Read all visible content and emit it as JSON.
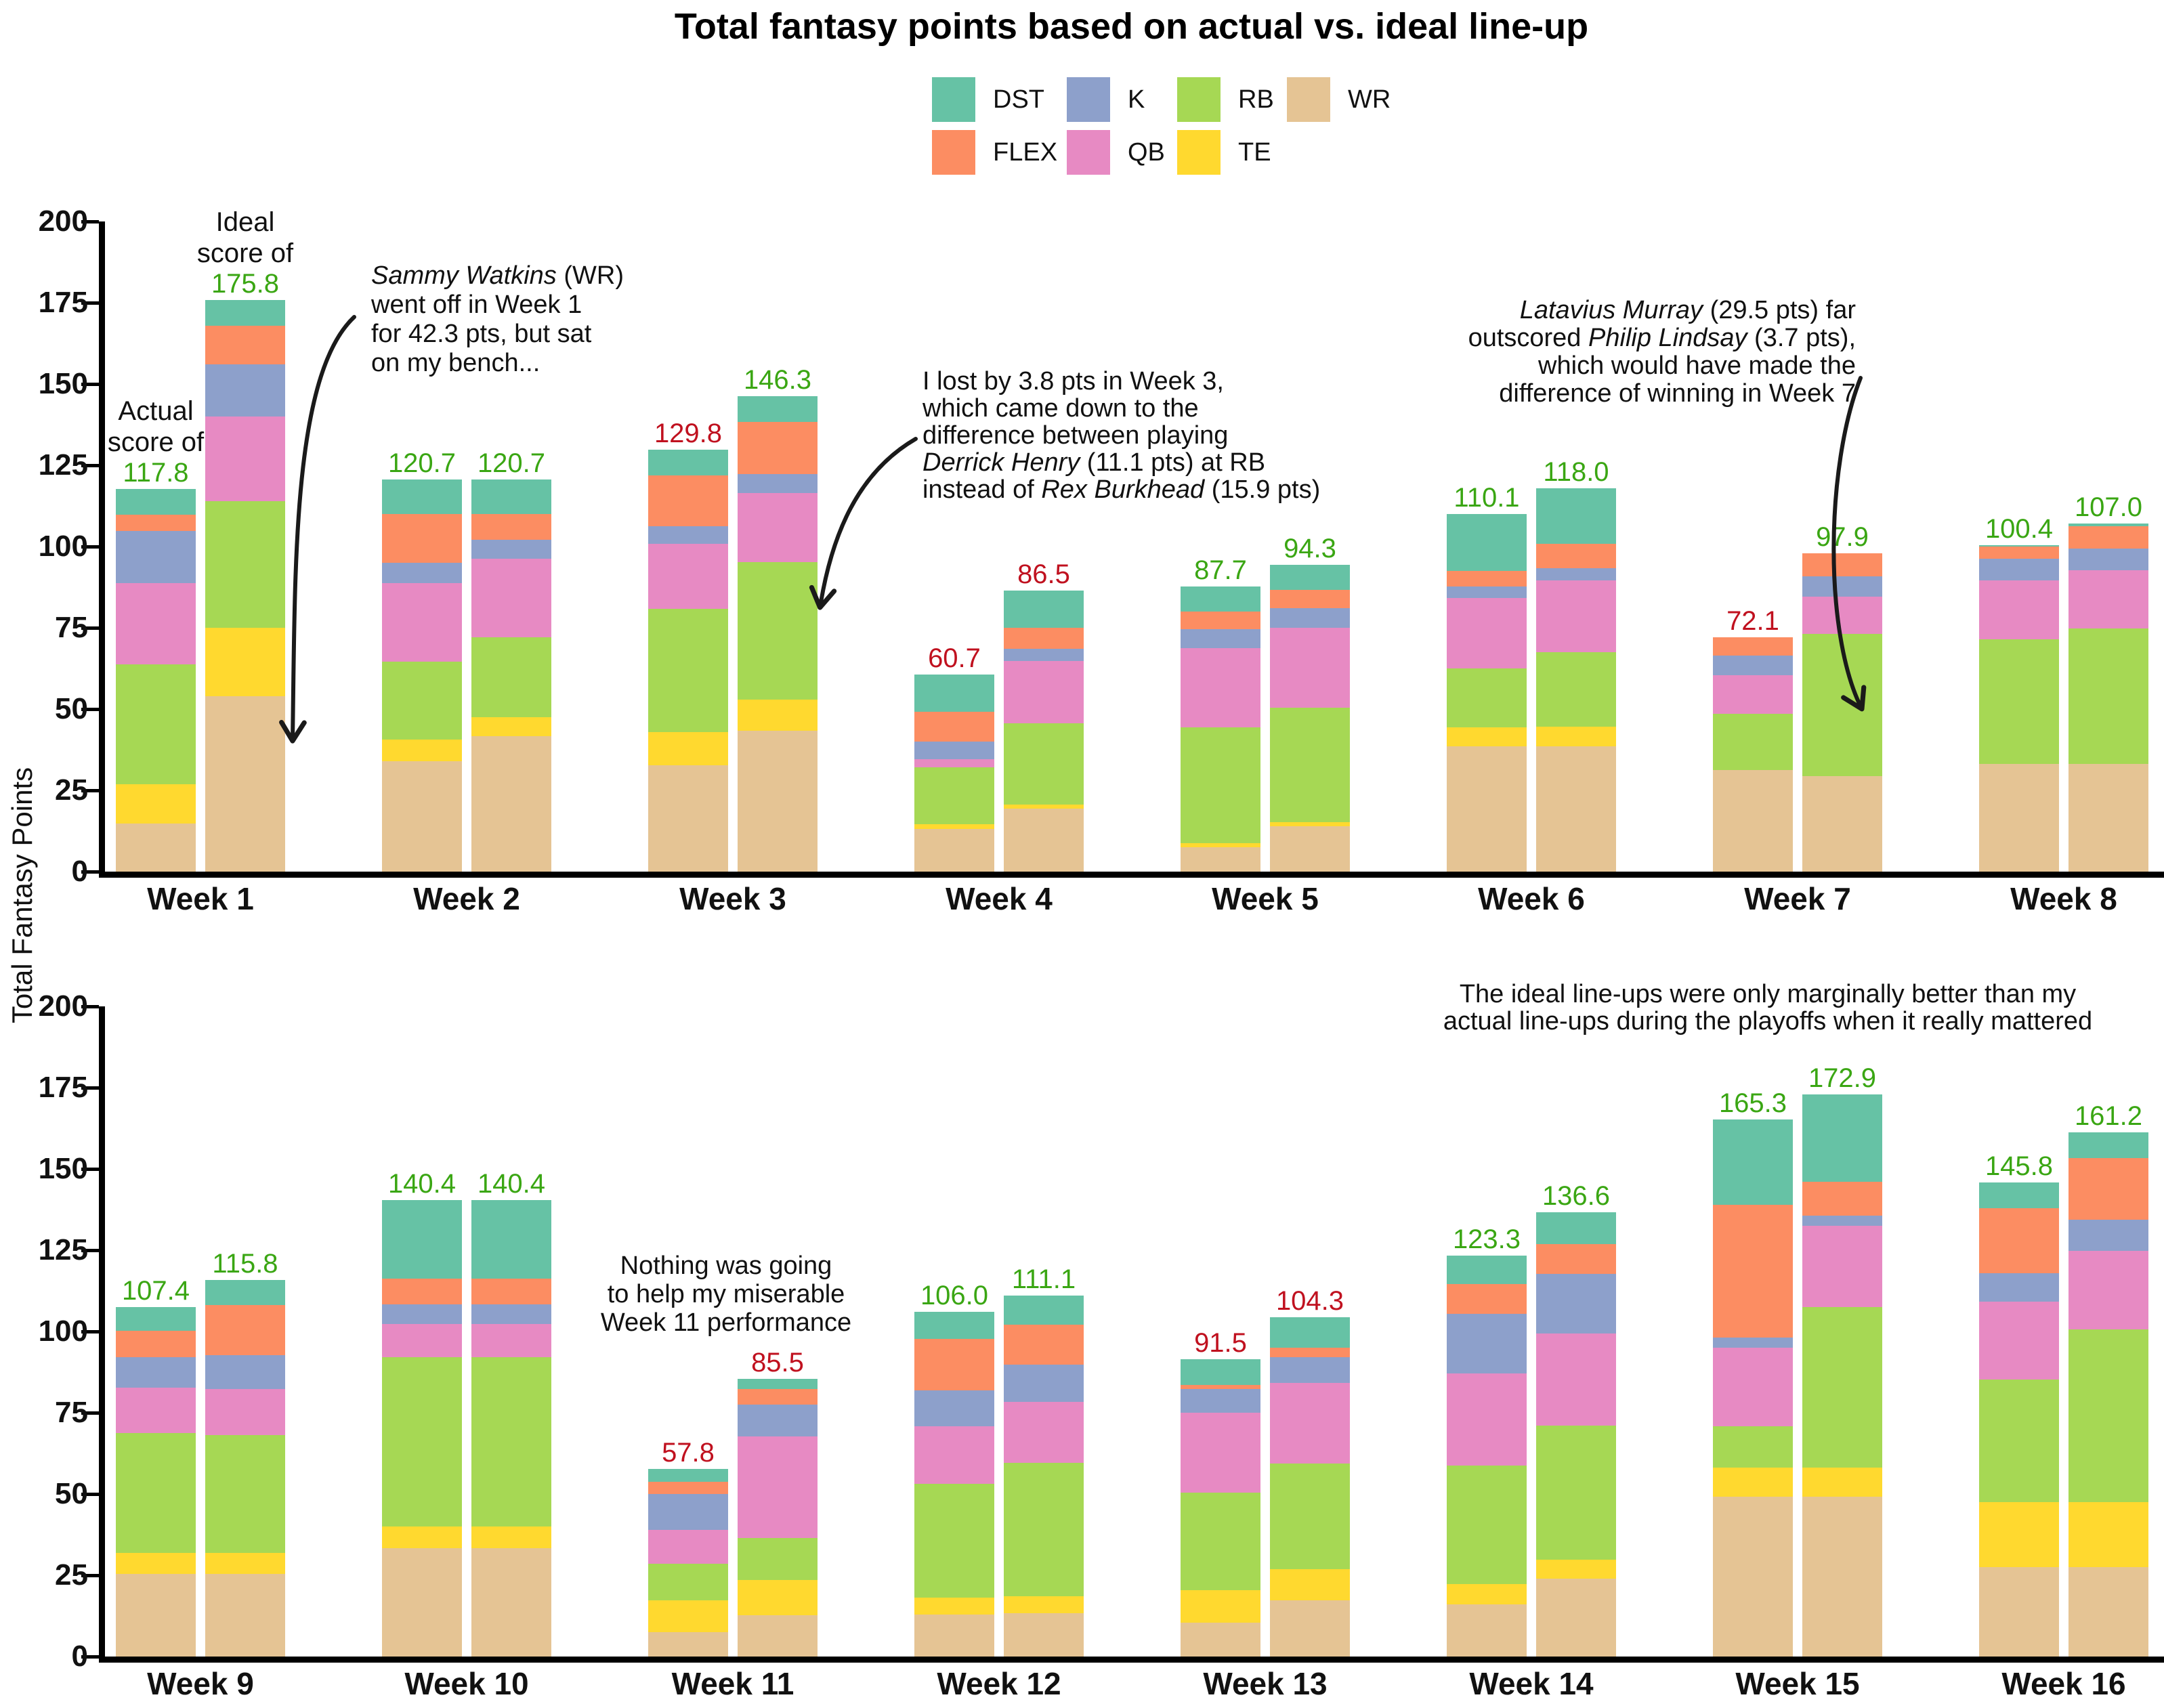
{
  "title": "Total fantasy points based on actual vs. ideal line-up",
  "y_axis_label": "Total Fantasy Points",
  "colors": {
    "win_label": "#3aa613",
    "loss_label": "#c0111f",
    "axis": "#000000",
    "text": "#111111"
  },
  "legend": [
    {
      "label": "DST",
      "color": "#66c2a5"
    },
    {
      "label": "K",
      "color": "#8da0cb"
    },
    {
      "label": "RB",
      "color": "#a6d854"
    },
    {
      "label": "WR",
      "color": "#e5c494"
    },
    {
      "label": "FLEX",
      "color": "#fc8d62"
    },
    {
      "label": "QB",
      "color": "#e78ac3"
    },
    {
      "label": "TE",
      "color": "#ffd92f"
    }
  ],
  "chart_data": {
    "type": "bar",
    "stacked": true,
    "bars_per_group": [
      "actual",
      "ideal"
    ],
    "stack_order_bottom_to_top": [
      "WR",
      "TE",
      "RB",
      "QB",
      "K",
      "FLEX",
      "DST"
    ],
    "category_colors": {
      "DST": "#66c2a5",
      "FLEX": "#fc8d62",
      "K": "#8da0cb",
      "QB": "#e78ac3",
      "RB": "#a6d854",
      "TE": "#ffd92f",
      "WR": "#e5c494"
    },
    "ylabel": "Total Fantasy Points",
    "ylim": [
      0,
      200
    ],
    "yticks": [
      0,
      25,
      50,
      75,
      100,
      125,
      150,
      175,
      200
    ],
    "grid": false,
    "legend_position": "top-center",
    "panels": [
      {
        "weeks": [
          {
            "label": "Week 1",
            "actual": {
              "total": 117.8,
              "result": "win",
              "segments": {
                "WR": 14.8,
                "TE": 12,
                "RB": 37,
                "QB": 25,
                "K": 16,
                "FLEX": 5,
                "DST": 8
              }
            },
            "ideal": {
              "total": 175.8,
              "result": "win",
              "segments": {
                "WR": 54,
                "TE": 21,
                "RB": 39,
                "QB": 26,
                "K": 16,
                "FLEX": 12,
                "DST": 7.8
              }
            }
          },
          {
            "label": "Week 2",
            "actual": {
              "total": 120.7,
              "result": "win",
              "segments": {
                "WR": 34,
                "TE": 6.6,
                "RB": 24,
                "QB": 24.2,
                "K": 6.3,
                "FLEX": 15,
                "DST": 10.6
              }
            },
            "ideal": {
              "total": 120.7,
              "result": "win",
              "segments": {
                "WR": 41.6,
                "TE": 5.9,
                "RB": 24.5,
                "QB": 24.2,
                "K": 5.9,
                "FLEX": 8,
                "DST": 10.6
              }
            }
          },
          {
            "label": "Week 3",
            "actual": {
              "total": 129.8,
              "result": "loss",
              "segments": {
                "WR": 32.8,
                "TE": 10.2,
                "RB": 37.9,
                "QB": 20,
                "K": 5.3,
                "FLEX": 15.7,
                "DST": 7.9
              }
            },
            "ideal": {
              "total": 146.3,
              "result": "win",
              "segments": {
                "WR": 43.3,
                "TE": 9.6,
                "RB": 42.3,
                "QB": 21.2,
                "K": 5.9,
                "FLEX": 16,
                "DST": 8
              }
            }
          },
          {
            "label": "Week 4",
            "actual": {
              "total": 60.7,
              "result": "loss",
              "segments": {
                "WR": 13.2,
                "TE": 1.4,
                "RB": 17.4,
                "QB": 2.6,
                "K": 5.3,
                "FLEX": 9.3,
                "DST": 11.5
              }
            },
            "ideal": {
              "total": 86.5,
              "result": "loss",
              "segments": {
                "WR": 19.3,
                "TE": 1.3,
                "RB": 25.1,
                "QB": 19,
                "K": 3.9,
                "FLEX": 6.4,
                "DST": 11.5
              }
            }
          },
          {
            "label": "Week 5",
            "actual": {
              "total": 87.7,
              "result": "win",
              "segments": {
                "WR": 7.4,
                "TE": 1.4,
                "RB": 35.5,
                "QB": 24.4,
                "K": 5.8,
                "FLEX": 5.5,
                "DST": 7.7
              }
            },
            "ideal": {
              "total": 94.3,
              "result": "win",
              "segments": {
                "WR": 13.9,
                "TE": 1.3,
                "RB": 35.3,
                "QB": 24.6,
                "K": 5.9,
                "FLEX": 5.6,
                "DST": 7.7
              }
            }
          },
          {
            "label": "Week 6",
            "actual": {
              "total": 110.1,
              "result": "win",
              "segments": {
                "WR": 38.6,
                "TE": 5.7,
                "RB": 18.1,
                "QB": 21.8,
                "K": 3.5,
                "FLEX": 4.9,
                "DST": 17.5
              }
            },
            "ideal": {
              "total": 118.0,
              "result": "win",
              "segments": {
                "WR": 38.6,
                "TE": 5.9,
                "RB": 23,
                "QB": 22,
                "K": 3.9,
                "FLEX": 7.4,
                "DST": 17.2
              }
            }
          },
          {
            "label": "Week 7",
            "actual": {
              "total": 72.1,
              "result": "loss",
              "segments": {
                "WR": 31.2,
                "TE": 0,
                "RB": 17.4,
                "QB": 11.8,
                "K": 6.1,
                "FLEX": 5.6,
                "DST": 0
              }
            },
            "ideal": {
              "total": 97.9,
              "result": "win",
              "segments": {
                "WR": 29.4,
                "TE": 0,
                "RB": 43.8,
                "QB": 11.3,
                "K": 6.3,
                "FLEX": 7.1,
                "DST": 0
              }
            }
          },
          {
            "label": "Week 8",
            "actual": {
              "total": 100.4,
              "result": "win",
              "segments": {
                "WR": 33.1,
                "TE": 0,
                "RB": 38.3,
                "QB": 18.2,
                "K": 6.7,
                "FLEX": 3.6,
                "DST": 0.5
              }
            },
            "ideal": {
              "total": 107.0,
              "result": "win",
              "segments": {
                "WR": 33.1,
                "TE": 0,
                "RB": 41.7,
                "QB": 17.9,
                "K": 6.7,
                "FLEX": 6.8,
                "DST": 0.8
              }
            }
          }
        ]
      },
      {
        "weeks": [
          {
            "label": "Week 9",
            "actual": {
              "total": 107.4,
              "result": "win",
              "segments": {
                "WR": 25.5,
                "TE": 6.3,
                "RB": 37,
                "QB": 14,
                "K": 9.3,
                "FLEX": 8.2,
                "DST": 7.1
              }
            },
            "ideal": {
              "total": 115.8,
              "result": "win",
              "segments": {
                "WR": 25.5,
                "TE": 6.3,
                "RB": 36.4,
                "QB": 14,
                "K": 10.5,
                "FLEX": 15.5,
                "DST": 7.6
              }
            }
          },
          {
            "label": "Week 10",
            "actual": {
              "total": 140.4,
              "result": "win",
              "segments": {
                "WR": 33.3,
                "TE": 6.8,
                "RB": 52,
                "QB": 10.1,
                "K": 6.1,
                "FLEX": 7.9,
                "DST": 24.2
              }
            },
            "ideal": {
              "total": 140.4,
              "result": "win",
              "segments": {
                "WR": 33.3,
                "TE": 6.8,
                "RB": 52,
                "QB": 10.1,
                "K": 6.1,
                "FLEX": 7.9,
                "DST": 24.2
              }
            }
          },
          {
            "label": "Week 11",
            "actual": {
              "total": 57.8,
              "result": "loss",
              "segments": {
                "WR": 7.6,
                "TE": 9.7,
                "RB": 11.3,
                "QB": 10.4,
                "K": 11,
                "FLEX": 3.8,
                "DST": 4
              }
            },
            "ideal": {
              "total": 85.5,
              "result": "loss",
              "segments": {
                "WR": 12.7,
                "TE": 10.8,
                "RB": 13,
                "QB": 31.3,
                "K": 9.8,
                "FLEX": 4.6,
                "DST": 3.3
              }
            }
          },
          {
            "label": "Week 12",
            "actual": {
              "total": 106.0,
              "result": "win",
              "segments": {
                "WR": 13,
                "TE": 5.2,
                "RB": 34.9,
                "QB": 17.7,
                "K": 11.1,
                "FLEX": 15.9,
                "DST": 8.2
              }
            },
            "ideal": {
              "total": 111.1,
              "result": "win",
              "segments": {
                "WR": 13.4,
                "TE": 5.1,
                "RB": 41,
                "QB": 18.8,
                "K": 11.5,
                "FLEX": 12.3,
                "DST": 9
              }
            }
          },
          {
            "label": "Week 13",
            "actual": {
              "total": 91.5,
              "result": "loss",
              "segments": {
                "WR": 10.5,
                "TE": 10,
                "RB": 30,
                "QB": 24.5,
                "K": 7.2,
                "FLEX": 1.4,
                "DST": 7.9
              }
            },
            "ideal": {
              "total": 104.3,
              "result": "loss",
              "segments": {
                "WR": 17.3,
                "TE": 9.5,
                "RB": 32.5,
                "QB": 24.8,
                "K": 7.9,
                "FLEX": 2.9,
                "DST": 9.4
              }
            }
          },
          {
            "label": "Week 14",
            "actual": {
              "total": 123.3,
              "result": "win",
              "segments": {
                "WR": 16,
                "TE": 6.2,
                "RB": 36.5,
                "QB": 28.4,
                "K": 18.3,
                "FLEX": 9.1,
                "DST": 8.8
              }
            },
            "ideal": {
              "total": 136.6,
              "result": "win",
              "segments": {
                "WR": 24,
                "TE": 5.8,
                "RB": 41.2,
                "QB": 28.4,
                "K": 18.3,
                "FLEX": 9.1,
                "DST": 9.8
              }
            }
          },
          {
            "label": "Week 15",
            "actual": {
              "total": 165.3,
              "result": "win",
              "segments": {
                "WR": 49.1,
                "TE": 9.1,
                "RB": 12.6,
                "QB": 24.2,
                "K": 3.2,
                "FLEX": 40.7,
                "DST": 26.4
              }
            },
            "ideal": {
              "total": 172.9,
              "result": "win",
              "segments": {
                "WR": 49.1,
                "TE": 9.1,
                "RB": 49.3,
                "QB": 25,
                "K": 3.2,
                "FLEX": 10.4,
                "DST": 26.8
              }
            }
          },
          {
            "label": "Week 16",
            "actual": {
              "total": 145.8,
              "result": "win",
              "segments": {
                "WR": 27.4,
                "TE": 20.2,
                "RB": 37.7,
                "QB": 23.8,
                "K": 8.9,
                "FLEX": 19.9,
                "DST": 7.9
              }
            },
            "ideal": {
              "total": 161.2,
              "result": "win",
              "segments": {
                "WR": 27.4,
                "TE": 20.2,
                "RB": 53.1,
                "QB": 24.1,
                "K": 9.5,
                "FLEX": 19,
                "DST": 7.9
              }
            }
          }
        ]
      }
    ]
  },
  "annotations": [
    {
      "name": "actual-score-note",
      "lines": [
        [
          {
            "text": "Actual"
          }
        ],
        [
          {
            "text": "score of"
          }
        ]
      ]
    },
    {
      "name": "ideal-score-note",
      "lines": [
        [
          {
            "text": "Ideal"
          }
        ],
        [
          {
            "text": "score of"
          }
        ]
      ]
    },
    {
      "name": "sammy-watkins-note",
      "lines": [
        [
          {
            "text": "Sammy Watkins",
            "italic": true
          },
          {
            "text": " (WR)"
          }
        ],
        [
          {
            "text": "went off in Week 1"
          }
        ],
        [
          {
            "text": "for 42.3 pts, but sat"
          }
        ],
        [
          {
            "text": "on my bench..."
          }
        ]
      ]
    },
    {
      "name": "week3-loss-note",
      "lines": [
        [
          {
            "text": "I lost by 3.8 pts in Week 3,"
          }
        ],
        [
          {
            "text": "which came down to the"
          }
        ],
        [
          {
            "text": "difference between playing"
          }
        ],
        [
          {
            "text": "Derrick Henry",
            "italic": true
          },
          {
            "text": " (11.1 pts) at RB"
          }
        ],
        [
          {
            "text": "instead of "
          },
          {
            "text": "Rex Burkhead",
            "italic": true
          },
          {
            "text": " (15.9 pts)"
          }
        ]
      ]
    },
    {
      "name": "latavius-note",
      "lines": [
        [
          {
            "text": "Latavius Murray",
            "italic": true
          },
          {
            "text": " (29.5 pts) far"
          }
        ],
        [
          {
            "text": "outscored "
          },
          {
            "text": "Philip Lindsay",
            "italic": true
          },
          {
            "text": " (3.7 pts),"
          }
        ],
        [
          {
            "text": "which would have made the"
          }
        ],
        [
          {
            "text": "difference of winning in Week 7"
          }
        ]
      ]
    },
    {
      "name": "week11-note",
      "lines": [
        [
          {
            "text": "Nothing was going"
          }
        ],
        [
          {
            "text": "to help my miserable"
          }
        ],
        [
          {
            "text": "Week 11 performance"
          }
        ]
      ]
    },
    {
      "name": "playoffs-note",
      "lines": [
        [
          {
            "text": "The ideal line-ups were only marginally better than my"
          }
        ],
        [
          {
            "text": "actual line-ups during the playoffs when it really mattered"
          }
        ]
      ]
    }
  ]
}
